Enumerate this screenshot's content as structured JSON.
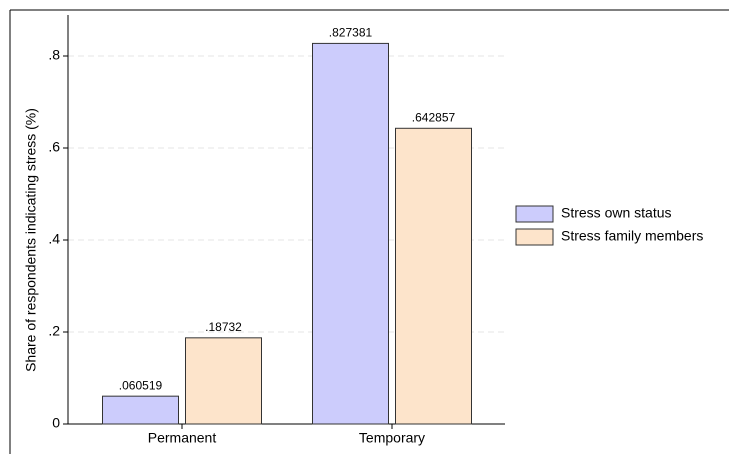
{
  "chart_data": {
    "type": "bar",
    "y_label": "Share of respondents indicating stress (%)",
    "categories": [
      "Permanent",
      "Temporary"
    ],
    "series": [
      {
        "name": "Stress own status",
        "color": "#ccccfc",
        "values": [
          0.060519,
          0.827381
        ],
        "value_labels": [
          ".060519",
          ".827381"
        ]
      },
      {
        "name": "Stress family members",
        "color": "#fde4cb",
        "values": [
          0.18732,
          0.642857
        ],
        "value_labels": [
          ".18732",
          ".642857"
        ]
      }
    ],
    "ylim": [
      0,
      0.9
    ],
    "yticks": [
      0,
      {
        "value": 0.2,
        "label": ".2"
      },
      {
        "value": 0.4,
        "label": ".4"
      },
      {
        "value": 0.6,
        "label": ".6"
      },
      {
        "value": 0.8,
        "label": ".8"
      }
    ],
    "grid": true
  }
}
